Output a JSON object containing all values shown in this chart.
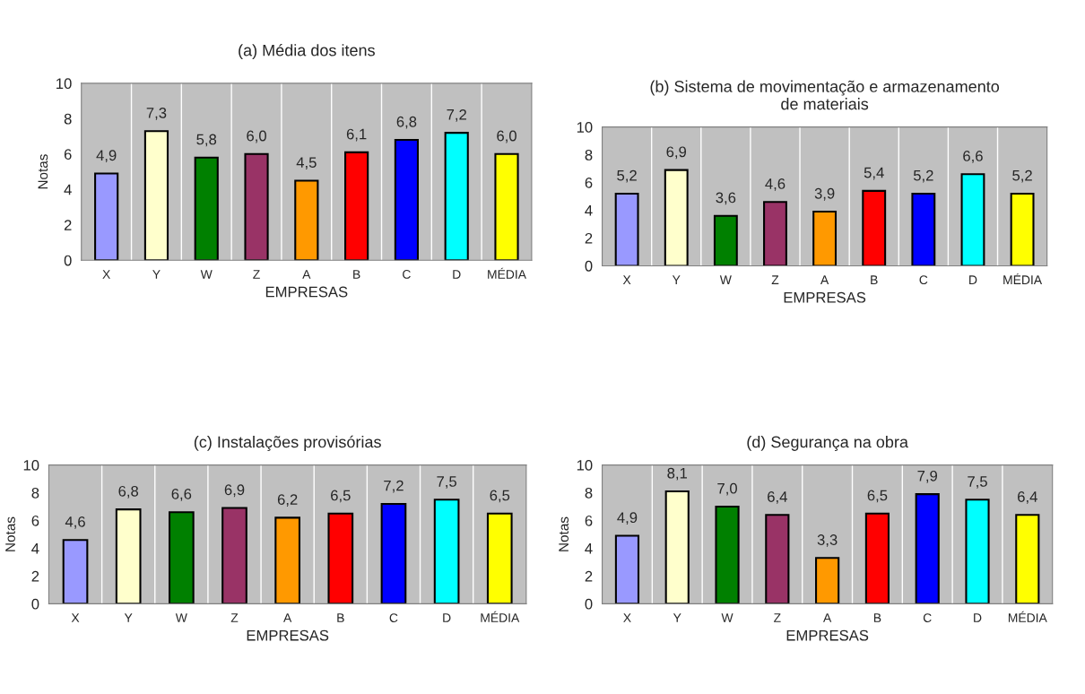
{
  "chart_data": [
    {
      "type": "bar",
      "title": "(a) Média dos itens",
      "xlabel": "EMPRESAS",
      "ylabel": "Notas",
      "categories": [
        "X",
        "Y",
        "W",
        "Z",
        "A",
        "B",
        "C",
        "D",
        "MÉDIA"
      ],
      "values": [
        4.9,
        7.3,
        5.8,
        6.0,
        4.5,
        6.1,
        6.8,
        7.2,
        6.0
      ],
      "value_labels": [
        "4,9",
        "7,3",
        "5,8",
        "6,0",
        "4,5",
        "6,1",
        "6,8",
        "7,2",
        "6,0"
      ],
      "colors": [
        "#9999ff",
        "#ffffcc",
        "#008000",
        "#993366",
        "#ff9900",
        "#ff0000",
        "#0000ff",
        "#00ffff",
        "#ffff00"
      ],
      "ylim": [
        0,
        10
      ],
      "yticks": [
        0,
        2,
        4,
        6,
        8,
        10
      ],
      "grid": "x",
      "legend": false
    },
    {
      "type": "bar",
      "title": "(b) Sistema de movimentação e armazenamento\nde materiais",
      "xlabel": "EMPRESAS",
      "categories": [
        "X",
        "Y",
        "W",
        "Z",
        "A",
        "B",
        "C",
        "D",
        "MÉDIA"
      ],
      "values": [
        5.2,
        6.9,
        3.6,
        4.6,
        3.9,
        5.4,
        5.2,
        6.6,
        5.2
      ],
      "value_labels": [
        "5,2",
        "6,9",
        "3,6",
        "4,6",
        "3,9",
        "5,4",
        "5,2",
        "6,6",
        "5,2"
      ],
      "colors": [
        "#9999ff",
        "#ffffcc",
        "#008000",
        "#993366",
        "#ff9900",
        "#ff0000",
        "#0000ff",
        "#00ffff",
        "#ffff00"
      ],
      "ylim": [
        0,
        10
      ],
      "yticks": [
        0,
        2,
        4,
        6,
        8,
        10
      ],
      "grid": "x",
      "legend": false
    },
    {
      "type": "bar",
      "title": "(c) Instalações provisórias",
      "xlabel": "EMPRESAS",
      "ylabel": "Notas",
      "categories": [
        "X",
        "Y",
        "W",
        "Z",
        "A",
        "B",
        "C",
        "D",
        "MÉDIA"
      ],
      "values": [
        4.6,
        6.8,
        6.6,
        6.9,
        6.2,
        6.5,
        7.2,
        7.5,
        6.5
      ],
      "value_labels": [
        "4,6",
        "6,8",
        "6,6",
        "6,9",
        "6,2",
        "6,5",
        "7,2",
        "7,5",
        "6,5"
      ],
      "colors": [
        "#9999ff",
        "#ffffcc",
        "#008000",
        "#993366",
        "#ff9900",
        "#ff0000",
        "#0000ff",
        "#00ffff",
        "#ffff00"
      ],
      "ylim": [
        0,
        10
      ],
      "yticks": [
        0,
        2,
        4,
        6,
        8,
        10
      ],
      "grid": "x",
      "legend": false
    },
    {
      "type": "bar",
      "title": "(d) Segurança na obra",
      "xlabel": "EMPRESAS",
      "ylabel": "Notas",
      "categories": [
        "X",
        "Y",
        "W",
        "Z",
        "A",
        "B",
        "C",
        "D",
        "MÉDIA"
      ],
      "values": [
        4.9,
        8.1,
        7.0,
        6.4,
        3.3,
        6.5,
        7.9,
        7.5,
        6.4
      ],
      "value_labels": [
        "4,9",
        "8,1",
        "7,0",
        "6,4",
        "3,3",
        "6,5",
        "7,9",
        "7,5",
        "6,4"
      ],
      "colors": [
        "#9999ff",
        "#ffffcc",
        "#008000",
        "#993366",
        "#ff9900",
        "#ff0000",
        "#0000ff",
        "#00ffff",
        "#ffff00"
      ],
      "ylim": [
        0,
        10
      ],
      "yticks": [
        0,
        2,
        4,
        6,
        8,
        10
      ],
      "grid": "x",
      "legend": false
    }
  ]
}
